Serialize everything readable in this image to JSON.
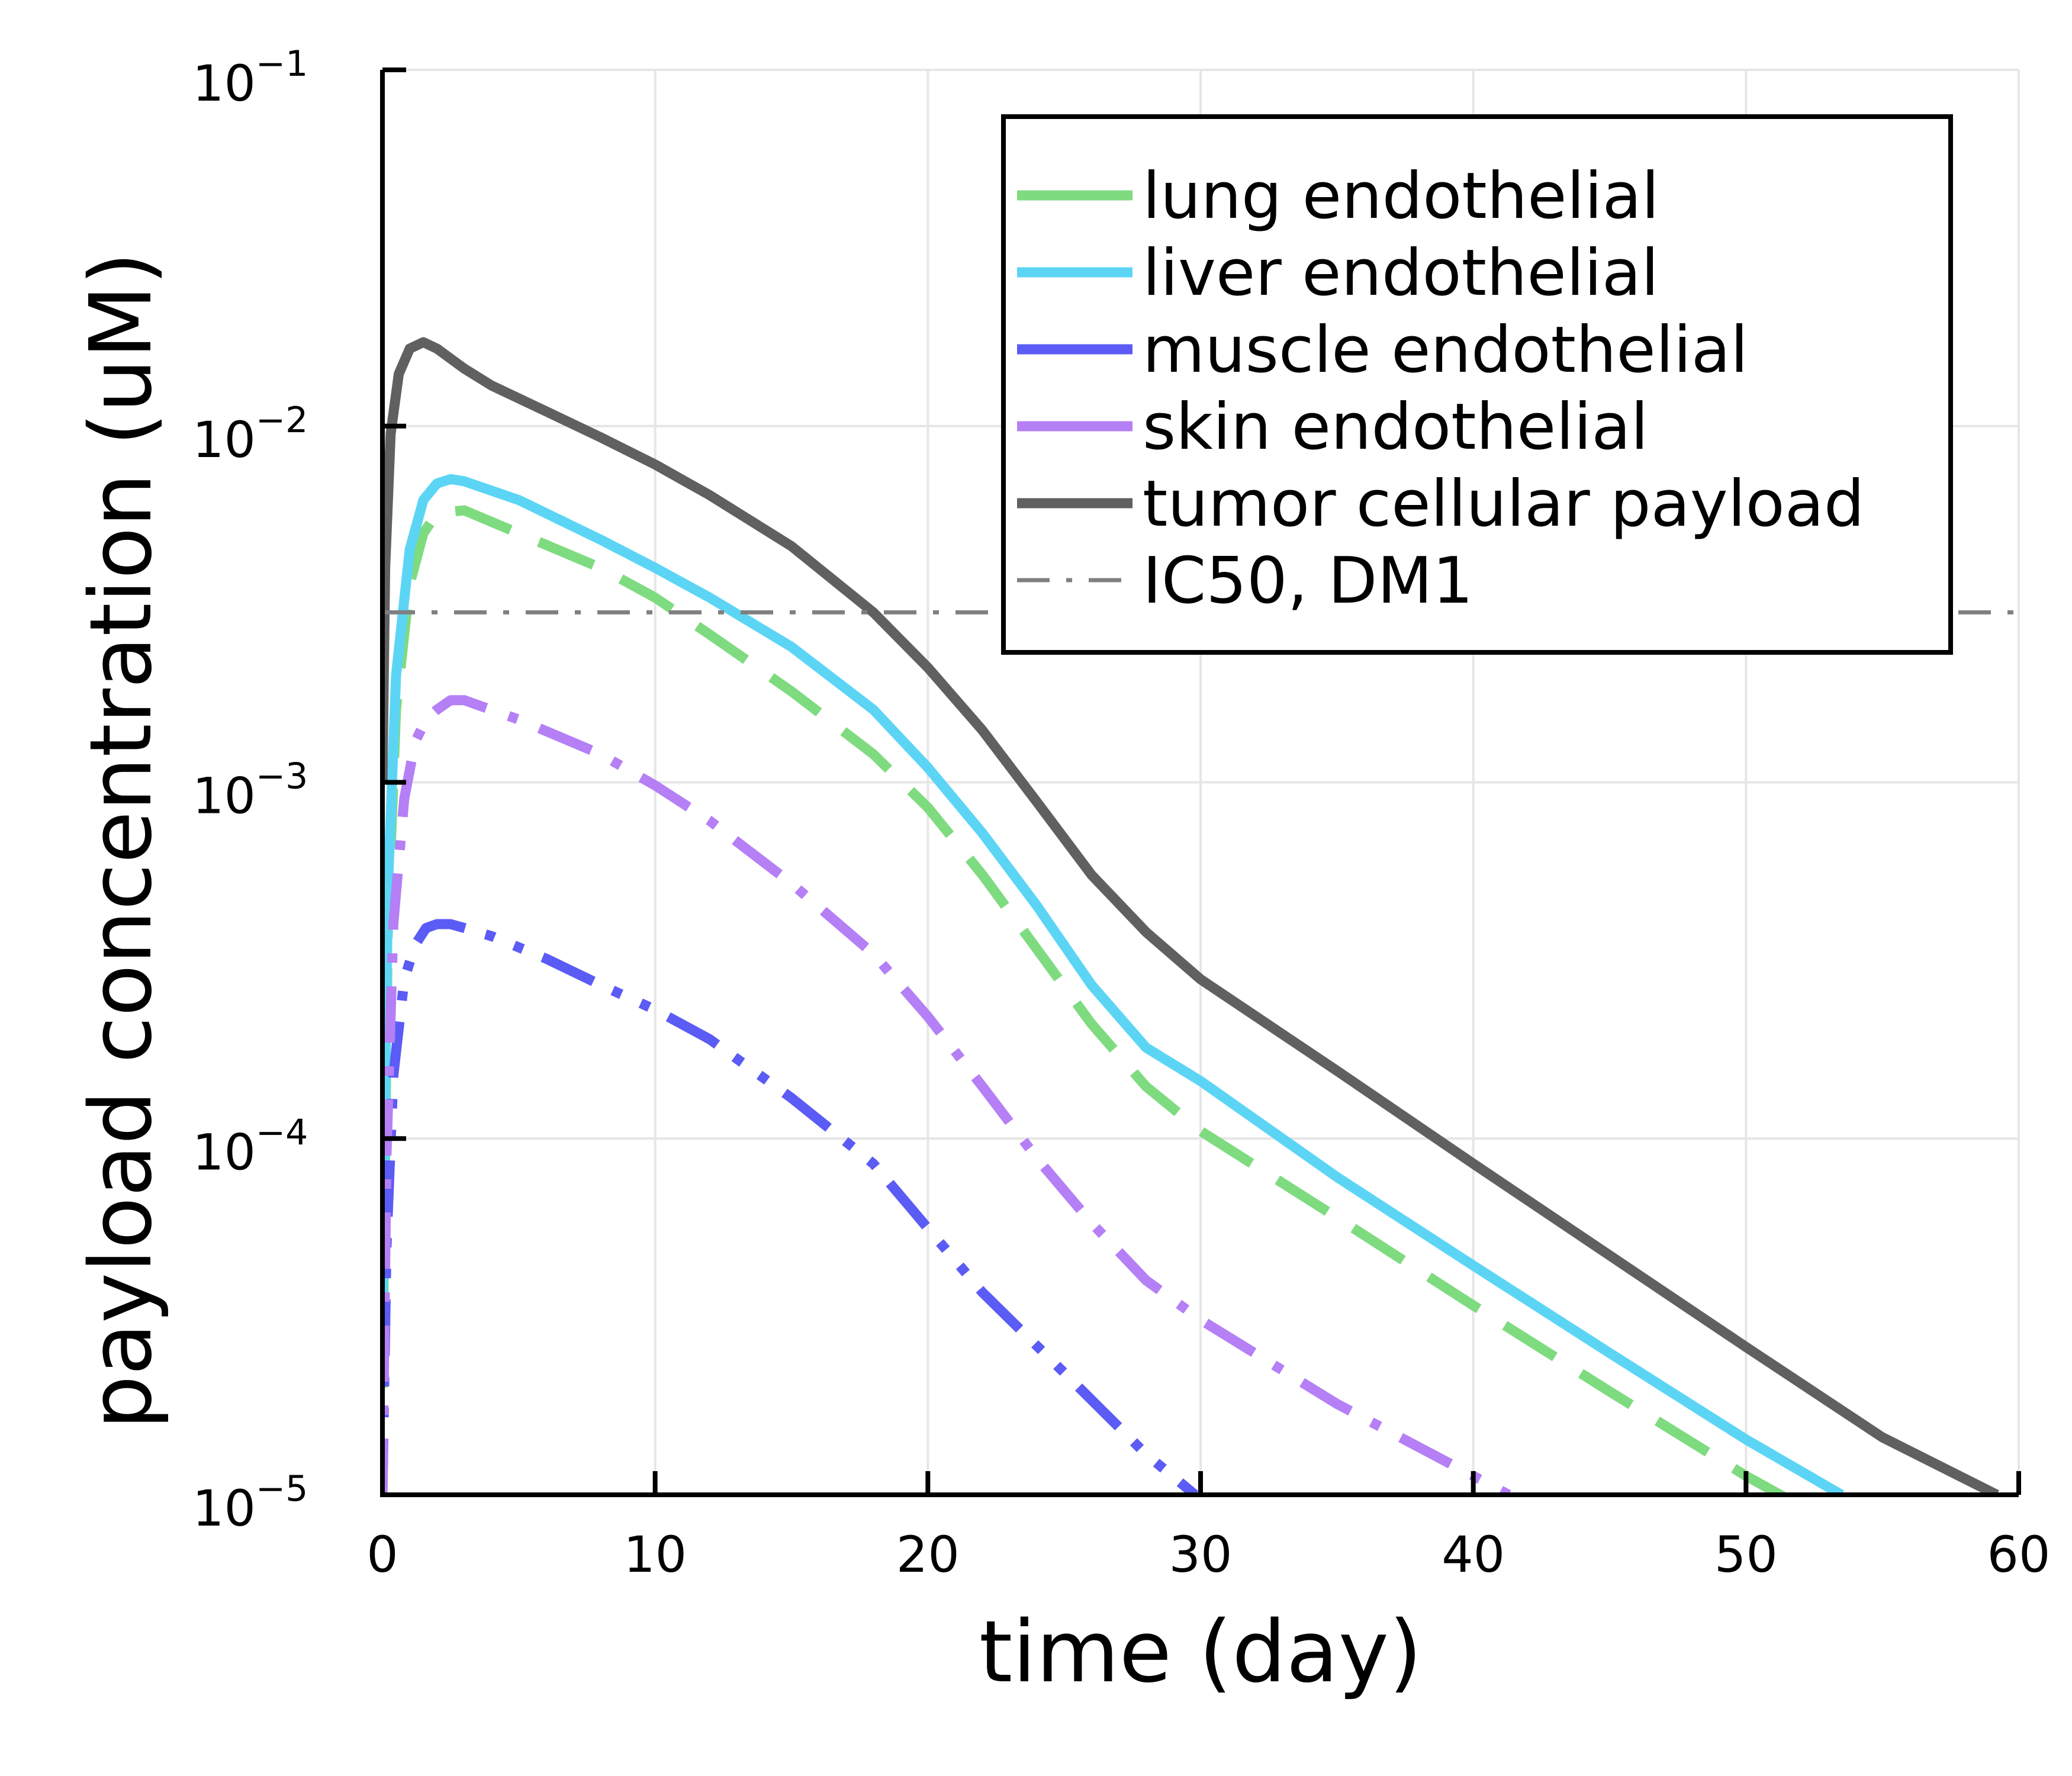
{
  "chart_data": {
    "type": "line",
    "title": "",
    "xlabel": "time (day)",
    "ylabel": "payload concentration (uM)",
    "xlim": [
      0,
      60
    ],
    "ylim": [
      1e-05,
      0.1
    ],
    "y_scale": "log",
    "grid": true,
    "legend_position": "top-right",
    "x_ticks": [
      {
        "value": 0,
        "label": "0"
      },
      {
        "value": 10,
        "label": "10"
      },
      {
        "value": 20,
        "label": "20"
      },
      {
        "value": 30,
        "label": "30"
      },
      {
        "value": 40,
        "label": "40"
      },
      {
        "value": 50,
        "label": "50"
      },
      {
        "value": 60,
        "label": "60"
      }
    ],
    "y_ticks": [
      {
        "value": 1e-05,
        "base": "10",
        "exponent": "−5"
      },
      {
        "value": 0.0001,
        "base": "10",
        "exponent": "−4"
      },
      {
        "value": 0.001,
        "base": "10",
        "exponent": "−3"
      },
      {
        "value": 0.01,
        "base": "10",
        "exponent": "−2"
      },
      {
        "value": 0.1,
        "base": "10",
        "exponent": "−1"
      }
    ],
    "series": [
      {
        "name": "lung endothelial",
        "color": "#7fdb80",
        "style": "dashed",
        "x": [
          0,
          0.2,
          0.5,
          1,
          1.5,
          2,
          3,
          5,
          8,
          10,
          12,
          15,
          18,
          20,
          22,
          24,
          26,
          28,
          30,
          35,
          40,
          45,
          50,
          52
        ],
        "y": [
          2e-05,
          0.0004,
          0.0016,
          0.0036,
          0.005,
          0.0057,
          0.0058,
          0.005,
          0.004,
          0.0033,
          0.0026,
          0.0018,
          0.0012,
          0.00085,
          0.00055,
          0.00034,
          0.00021,
          0.00014,
          0.000105,
          6e-05,
          3.4e-05,
          1.95e-05,
          1.13e-05,
          9.3e-06
        ]
      },
      {
        "name": "liver endothelial",
        "color": "#5cd5f5",
        "style": "solid",
        "x": [
          0,
          0.2,
          0.5,
          1,
          1.5,
          2,
          2.5,
          3,
          5,
          8,
          10,
          12,
          15,
          18,
          20,
          22,
          24,
          26,
          28,
          30,
          35,
          40,
          45,
          50,
          53.5
        ],
        "y": [
          3e-05,
          0.0005,
          0.002,
          0.0045,
          0.0062,
          0.0069,
          0.0071,
          0.007,
          0.0062,
          0.0048,
          0.004,
          0.0033,
          0.0024,
          0.0016,
          0.0011,
          0.00072,
          0.00045,
          0.00027,
          0.00018,
          0.000145,
          7.8e-05,
          4.4e-05,
          2.5e-05,
          1.43e-05,
          1e-05
        ]
      },
      {
        "name": "muscle endothelial",
        "color": "#5b5bf5",
        "style": "dashdotdot",
        "x": [
          0,
          0.15,
          0.4,
          0.8,
          1.2,
          1.6,
          2,
          2.5,
          3,
          4,
          6,
          8,
          10,
          12,
          15,
          18,
          20,
          22,
          25,
          28,
          29.8
        ],
        "y": [
          1e-05,
          5e-05,
          0.00015,
          0.00028,
          0.00035,
          0.00039,
          0.0004,
          0.0004,
          0.00039,
          0.00037,
          0.00032,
          0.00027,
          0.00023,
          0.00019,
          0.00013,
          8.5e-05,
          5.6e-05,
          3.7e-05,
          2.2e-05,
          1.3e-05,
          1e-05
        ]
      },
      {
        "name": "skin endothelial",
        "color": "#b57ff5",
        "style": "dashdot",
        "x": [
          0,
          0.15,
          0.4,
          0.8,
          1.2,
          1.6,
          2,
          2.5,
          3,
          5,
          8,
          10,
          12,
          15,
          18,
          20,
          22,
          24,
          26,
          28,
          30,
          35,
          40,
          41.3
        ],
        "y": [
          1e-05,
          9e-05,
          0.0004,
          0.0009,
          0.0013,
          0.0015,
          0.0016,
          0.0017,
          0.0017,
          0.0015,
          0.0012,
          0.00098,
          0.00078,
          0.00052,
          0.00033,
          0.00022,
          0.00014,
          8.8e-05,
          5.8e-05,
          4e-05,
          3.1e-05,
          1.8e-05,
          1.13e-05,
          1e-05
        ]
      },
      {
        "name": "tumor cellular payload",
        "color": "#606060",
        "style": "solid",
        "x": [
          0,
          0.1,
          0.3,
          0.6,
          1,
          1.5,
          2,
          3,
          4,
          6,
          8,
          10,
          12,
          15,
          18,
          20,
          22,
          24,
          26,
          28,
          30,
          35,
          40,
          45,
          50,
          55,
          59.2
        ],
        "y": [
          0.001,
          0.004,
          0.0095,
          0.014,
          0.0165,
          0.0172,
          0.0165,
          0.0145,
          0.013,
          0.011,
          0.0093,
          0.0078,
          0.0064,
          0.0046,
          0.003,
          0.0021,
          0.0014,
          0.00088,
          0.00055,
          0.00038,
          0.00028,
          0.000155,
          8.5e-05,
          4.7e-05,
          2.6e-05,
          1.45e-05,
          1e-05
        ]
      },
      {
        "name": "IC50, DM1",
        "color": "#808080",
        "style": "dashdot-thin",
        "x": [
          0,
          60
        ],
        "y": [
          0.003,
          0.003
        ]
      }
    ]
  }
}
